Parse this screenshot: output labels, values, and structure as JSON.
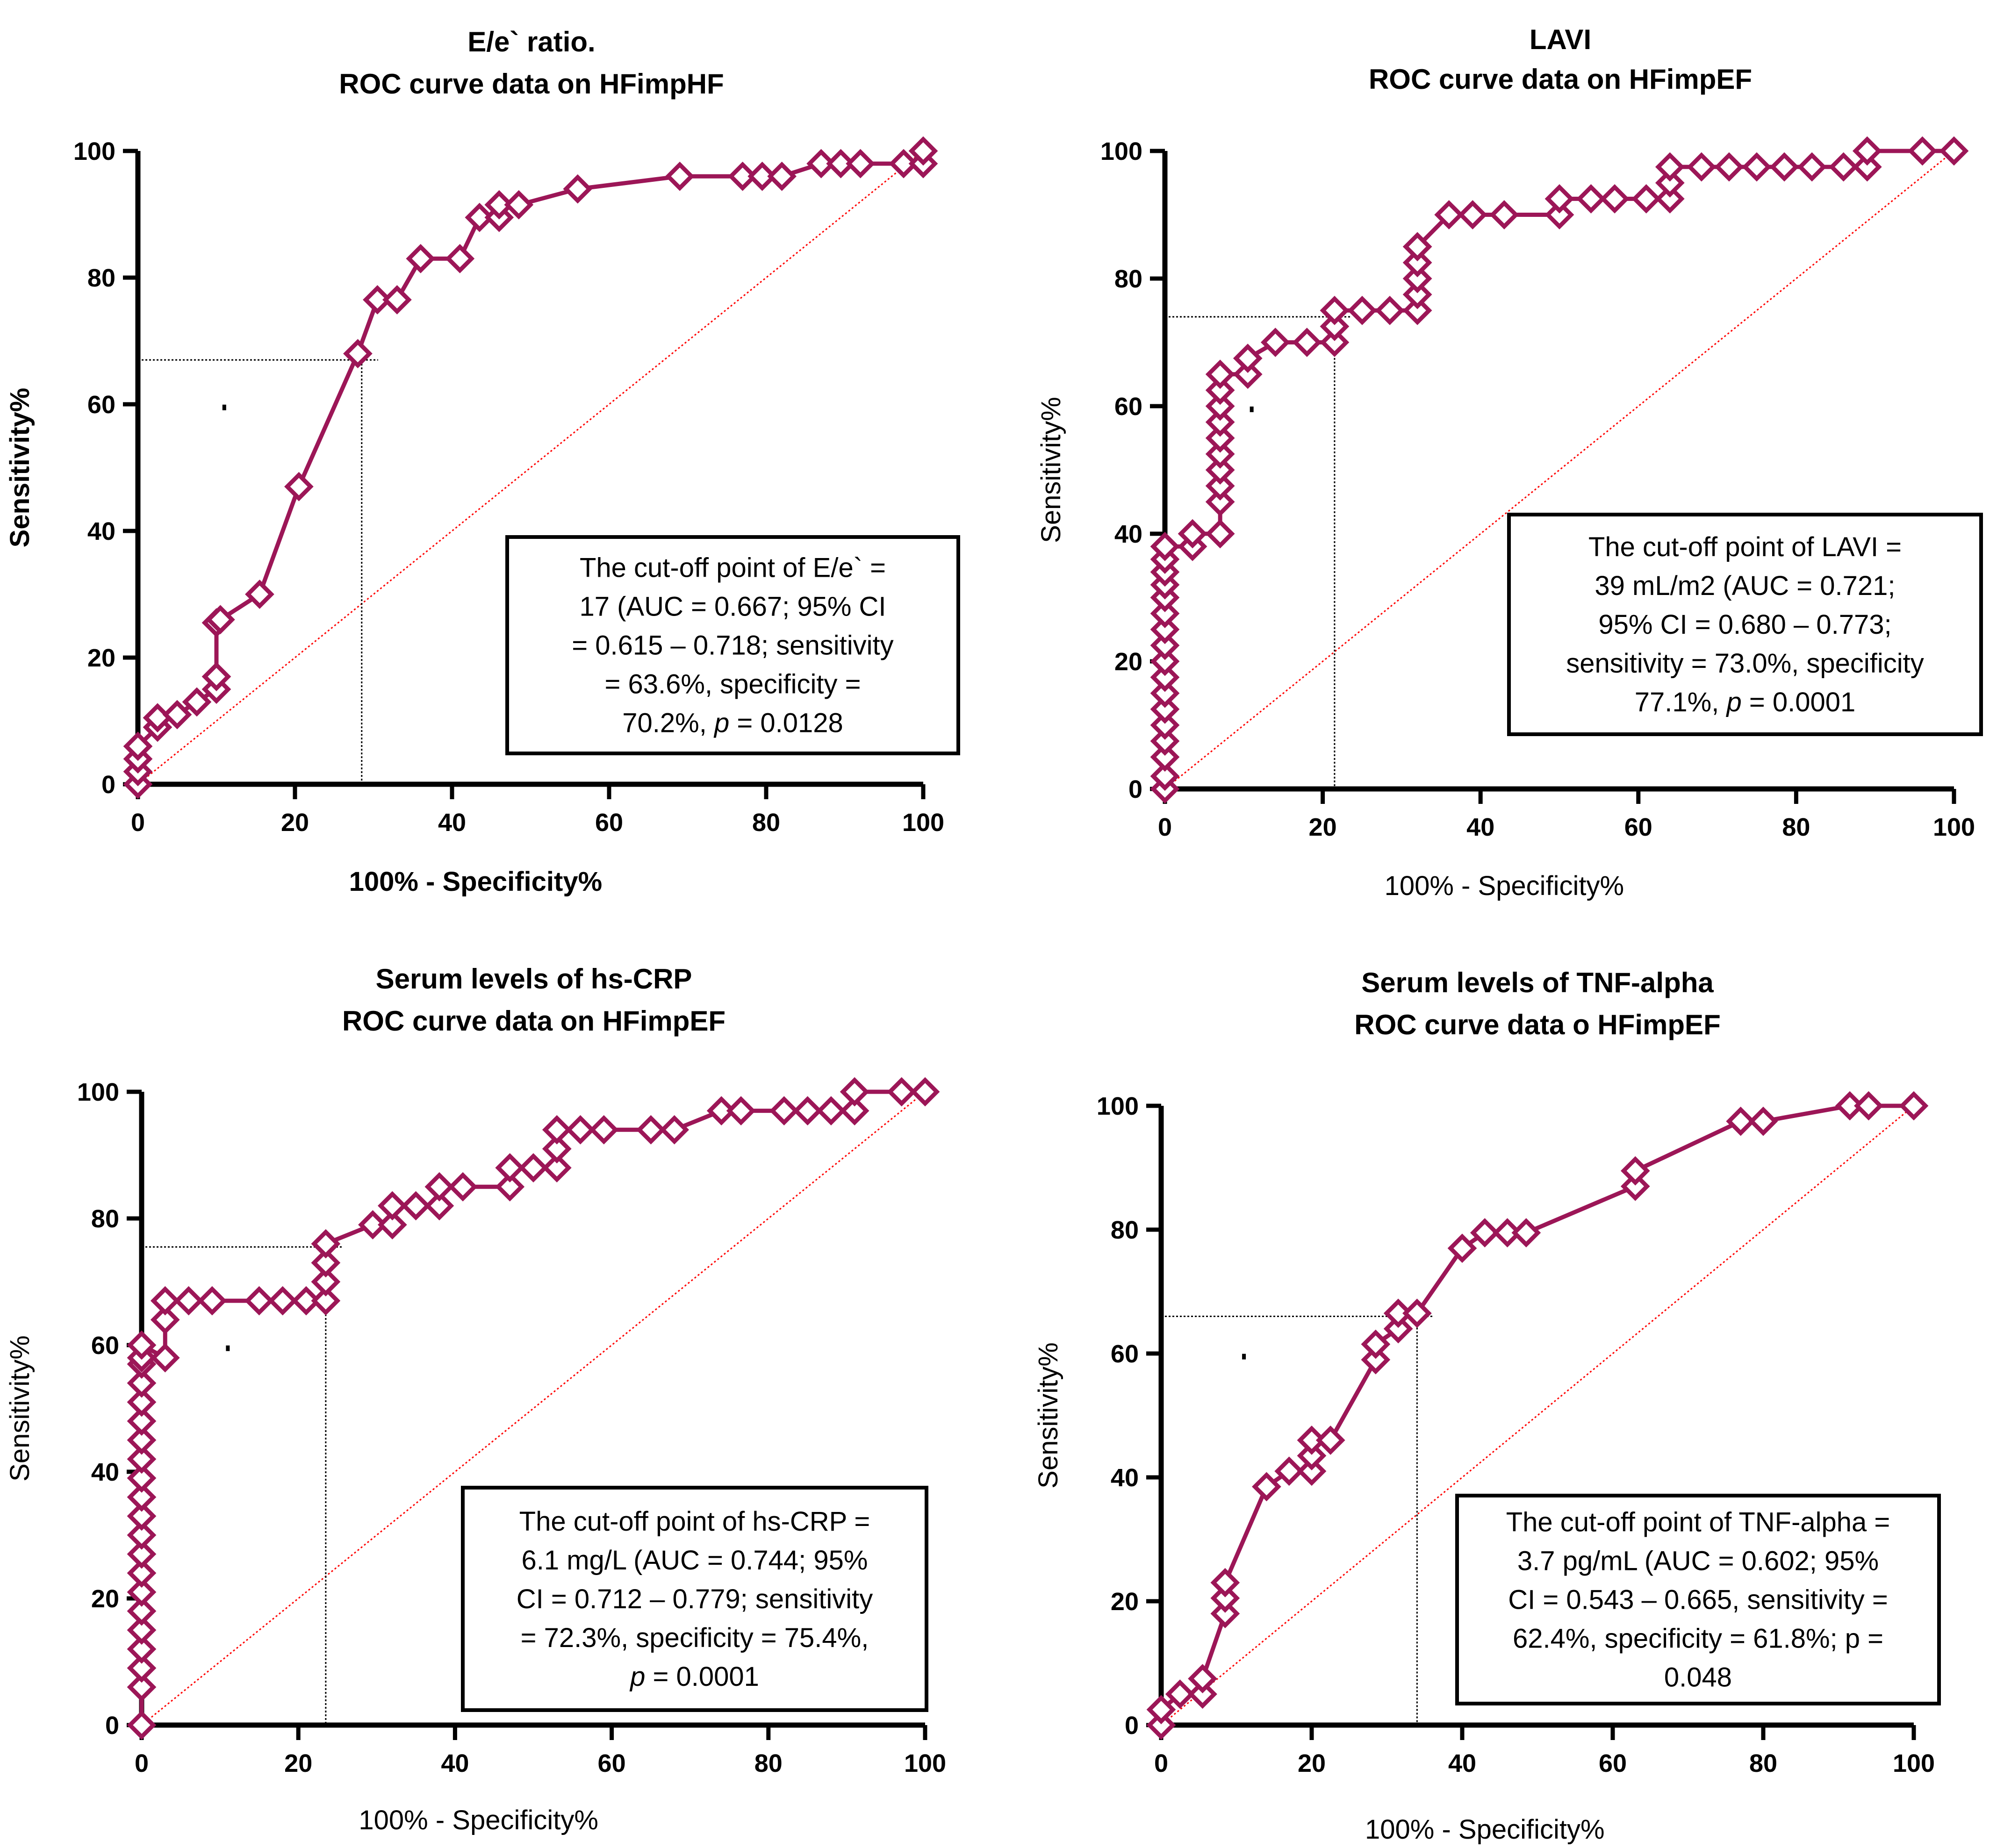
{
  "series_color": "#9c1657",
  "reference_color": "#ff0000",
  "chart_data": [
    {
      "type": "line",
      "title": [
        "E/e` ratio.",
        "ROC curve data on HFimpHF"
      ],
      "xlabel": "100% - Specificity%",
      "ylabel": "Sensitivity%",
      "xlim": [
        0,
        100
      ],
      "ylim": [
        0,
        100
      ],
      "xticks": [
        "0",
        "20",
        "40",
        "60",
        "80",
        "100"
      ],
      "yticks": [
        "0",
        "20",
        "40",
        "60",
        "80",
        "100"
      ],
      "reference_line": [
        [
          0,
          0
        ],
        [
          100,
          100
        ]
      ],
      "cutoff": {
        "x": 28.5,
        "y": 67
      },
      "x": [
        0,
        0,
        0,
        0,
        2.5,
        2.5,
        5,
        7.5,
        10,
        10,
        10,
        10.5,
        15.5,
        20.5,
        28,
        30.5,
        33,
        36,
        41,
        43.5,
        46,
        46,
        48.5,
        56,
        69,
        77,
        79.5,
        82,
        87,
        89.5,
        92,
        97.5,
        100,
        100
      ],
      "y": [
        0,
        2,
        4,
        6,
        9,
        10.5,
        11,
        13,
        15,
        17,
        25.5,
        26,
        30,
        47,
        68,
        76.5,
        76.5,
        83,
        83,
        89.5,
        89.5,
        91.5,
        91.5,
        94,
        96,
        96,
        96,
        96,
        98,
        98,
        98,
        98,
        98,
        100
      ],
      "annotation": [
        {
          "text": "The cut-off point of E/e` ="
        },
        {
          "text": "17  (AUC = 0.667; 95% CI"
        },
        {
          "text": "= 0.615 – 0.718; sensitivity"
        },
        {
          "text": "= 63.6%, specificity ="
        },
        {
          "pre": "70.2%, ",
          "italic": "p",
          "post": " = 0.0128"
        }
      ]
    },
    {
      "type": "line",
      "title": [
        "LAVI",
        "ROC curve data on HFimpEF"
      ],
      "xlabel": "100% - Specificity%",
      "ylabel": "Sensitivity%",
      "xlim": [
        0,
        100
      ],
      "ylim": [
        0,
        100
      ],
      "xticks": [
        "0",
        "20",
        "40",
        "60",
        "80",
        "100"
      ],
      "yticks": [
        "0",
        "20",
        "40",
        "60",
        "80",
        "100"
      ],
      "reference_line": [
        [
          0,
          0
        ],
        [
          100,
          100
        ]
      ],
      "cutoff": {
        "x": 21.5,
        "y": 74
      },
      "x": [
        0,
        0,
        0,
        0,
        0,
        0,
        0,
        0,
        0,
        0,
        0,
        0,
        0,
        0,
        0,
        0,
        0,
        3.5,
        3.5,
        7,
        7,
        7,
        7,
        7,
        7,
        7,
        7,
        7,
        7,
        10.5,
        10.5,
        14,
        18,
        21.5,
        21.5,
        21.5,
        25,
        28.5,
        32,
        32,
        32,
        32,
        32,
        36,
        39,
        43,
        50,
        50,
        54,
        57,
        61,
        64,
        64,
        64,
        68,
        71.5,
        75,
        78.5,
        82,
        86,
        89,
        89,
        96,
        100
      ],
      "y": [
        0,
        2,
        5,
        7.5,
        10,
        12.5,
        15,
        17.5,
        20,
        22.5,
        25,
        27.5,
        30,
        32,
        34,
        36,
        38,
        38,
        40,
        40,
        45,
        47.5,
        50,
        52.5,
        55,
        57.5,
        60,
        62.5,
        65,
        65,
        67.5,
        70,
        70,
        70,
        72.5,
        75,
        75,
        75,
        75,
        77.5,
        80,
        82.5,
        85,
        90,
        90,
        90,
        90,
        92.5,
        92.5,
        92.5,
        92.5,
        92.5,
        95,
        97.5,
        97.5,
        97.5,
        97.5,
        97.5,
        97.5,
        97.5,
        97.5,
        100,
        100,
        100
      ],
      "annotation": [
        {
          "text": "The cut-off point of LAVI ="
        },
        {
          "text": "39 mL/m2  (AUC = 0.721;"
        },
        {
          "text": "95% CI = 0.680 – 0.773;"
        },
        {
          "text": "sensitivity = 73.0%, specificity"
        },
        {
          "pre": "77.1%, ",
          "italic": "p",
          "post": " = 0.0001"
        }
      ]
    },
    {
      "type": "line",
      "title": [
        "Serum levels of hs-CRP",
        "ROC curve data on HFimpEF"
      ],
      "xlabel": "100% - Specificity%",
      "ylabel": "Sensitivity%",
      "xlim": [
        0,
        100
      ],
      "ylim": [
        0,
        100
      ],
      "xticks": [
        "0",
        "20",
        "40",
        "60",
        "80",
        "100"
      ],
      "yticks": [
        "0",
        "20",
        "40",
        "60",
        "80",
        "100"
      ],
      "reference_line": [
        [
          0,
          0
        ],
        [
          100,
          100
        ]
      ],
      "cutoff": {
        "x": 23.5,
        "y": 75.5
      },
      "x": [
        0,
        0,
        0,
        0,
        0,
        0,
        0,
        0,
        0,
        0,
        0,
        0,
        0,
        0,
        0,
        0,
        0,
        0,
        0,
        0,
        0,
        3,
        3,
        3,
        6,
        9,
        15,
        18,
        21,
        23.5,
        23.5,
        23.5,
        23.5,
        29.5,
        32,
        32,
        35,
        38,
        38,
        41,
        47,
        47,
        50,
        53,
        53,
        53,
        56,
        59,
        65,
        68,
        74,
        76.5,
        82,
        85,
        88,
        91,
        91,
        97,
        100
      ],
      "y": [
        0,
        6,
        9,
        12,
        15,
        18,
        21,
        24,
        27,
        30,
        33,
        36,
        39,
        42,
        45,
        48,
        51,
        54,
        57,
        58,
        60,
        58,
        64,
        67,
        67,
        67,
        67,
        67,
        67,
        67,
        70,
        73,
        76,
        79,
        79,
        82,
        82,
        82,
        85,
        85,
        85,
        88,
        88,
        88,
        91,
        94,
        94,
        94,
        94,
        94,
        97,
        97,
        97,
        97,
        97,
        97,
        100,
        100,
        100
      ],
      "annotation": [
        {
          "text": "The cut-off point of hs-CRP ="
        },
        {
          "text": "6.1 mg/L  (AUC = 0.744; 95%"
        },
        {
          "text": "CI = 0.712 – 0.779; sensitivity"
        },
        {
          "text": "= 72.3%, specificity = 75.4%,"
        },
        {
          "pre": "",
          "italic": "p",
          "post": " = 0.0001"
        }
      ]
    },
    {
      "type": "line",
      "title": [
        "Serum levels of TNF-alpha",
        "ROC curve data o HFimpEF"
      ],
      "xlabel": "100% - Specificity%",
      "ylabel": "Sensitivity%",
      "xlim": [
        0,
        100
      ],
      "ylim": [
        0,
        100
      ],
      "xticks": [
        "0",
        "20",
        "40",
        "60",
        "80",
        "100"
      ],
      "yticks": [
        "0",
        "20",
        "40",
        "60",
        "80",
        "100"
      ],
      "reference_line": [
        [
          0,
          0
        ],
        [
          100,
          100
        ]
      ],
      "cutoff": {
        "x": 34,
        "y": 66
      },
      "x": [
        0,
        0,
        2.5,
        5.5,
        5.5,
        8.5,
        8.5,
        8.5,
        14,
        17,
        20,
        20,
        20,
        22.5,
        28.5,
        28.5,
        31.5,
        31.5,
        34,
        40,
        43,
        46,
        48.5,
        63,
        63,
        77,
        80,
        91.5,
        94,
        100
      ],
      "y": [
        0,
        2.5,
        5,
        5,
        7.5,
        18,
        20.5,
        23,
        38.5,
        41,
        41,
        43.5,
        46,
        46,
        59,
        61.5,
        64,
        66.5,
        66.5,
        77,
        79.5,
        79.5,
        79.5,
        87,
        89.5,
        97.5,
        97.5,
        100,
        100,
        100
      ],
      "annotation": [
        {
          "text": "The cut-off point of TNF-alpha ="
        },
        {
          "text": "3.7 pg/mL (AUC = 0.602; 95%"
        },
        {
          "text": "CI = 0.543 – 0.665, sensitivity ="
        },
        {
          "text": "62.4%, specificity = 61.8%; p ="
        },
        {
          "text": "0.048"
        }
      ]
    }
  ]
}
